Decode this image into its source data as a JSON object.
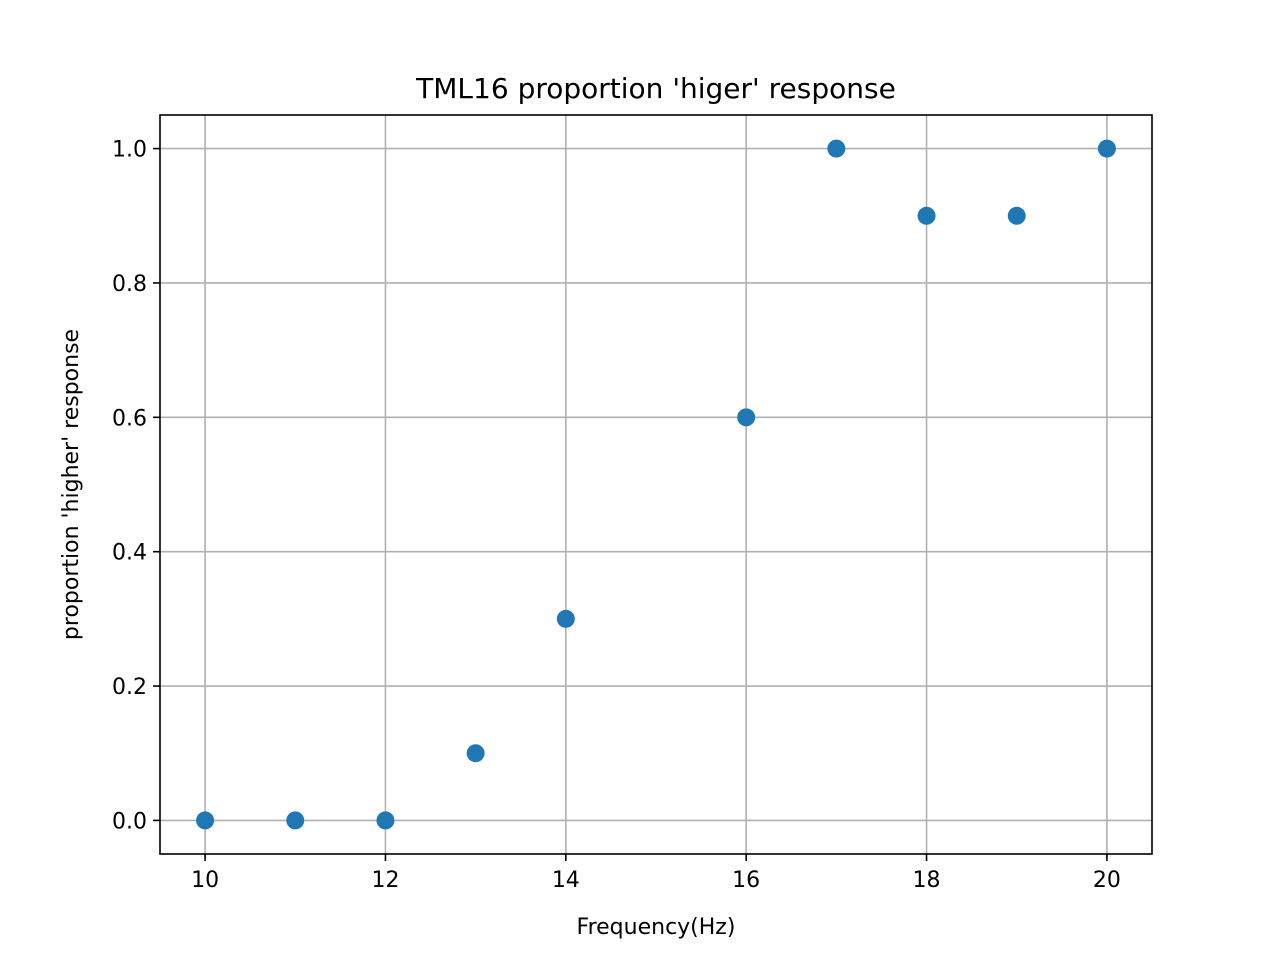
{
  "chart_data": {
    "type": "scatter",
    "title": "TML16 proportion 'higer' response",
    "xlabel": "Frequency(Hz)",
    "ylabel": "proportion 'higher' response",
    "xlim": [
      9.5,
      20.5
    ],
    "ylim": [
      -0.05,
      1.05
    ],
    "xticks": [
      10,
      12,
      14,
      16,
      18,
      20
    ],
    "xtick_labels": [
      "10",
      "12",
      "14",
      "16",
      "18",
      "20"
    ],
    "yticks": [
      0.0,
      0.2,
      0.4,
      0.6,
      0.8,
      1.0
    ],
    "ytick_labels": [
      "0.0",
      "0.2",
      "0.4",
      "0.6",
      "0.8",
      "1.0"
    ],
    "grid": true,
    "color": "#1f77b4",
    "series": [
      {
        "x": [
          10,
          11,
          12,
          13,
          14,
          16,
          17,
          18,
          19,
          20
        ],
        "y": [
          0.0,
          0.0,
          0.0,
          0.1,
          0.3,
          0.6,
          1.0,
          0.9,
          0.9,
          1.0
        ]
      }
    ]
  }
}
